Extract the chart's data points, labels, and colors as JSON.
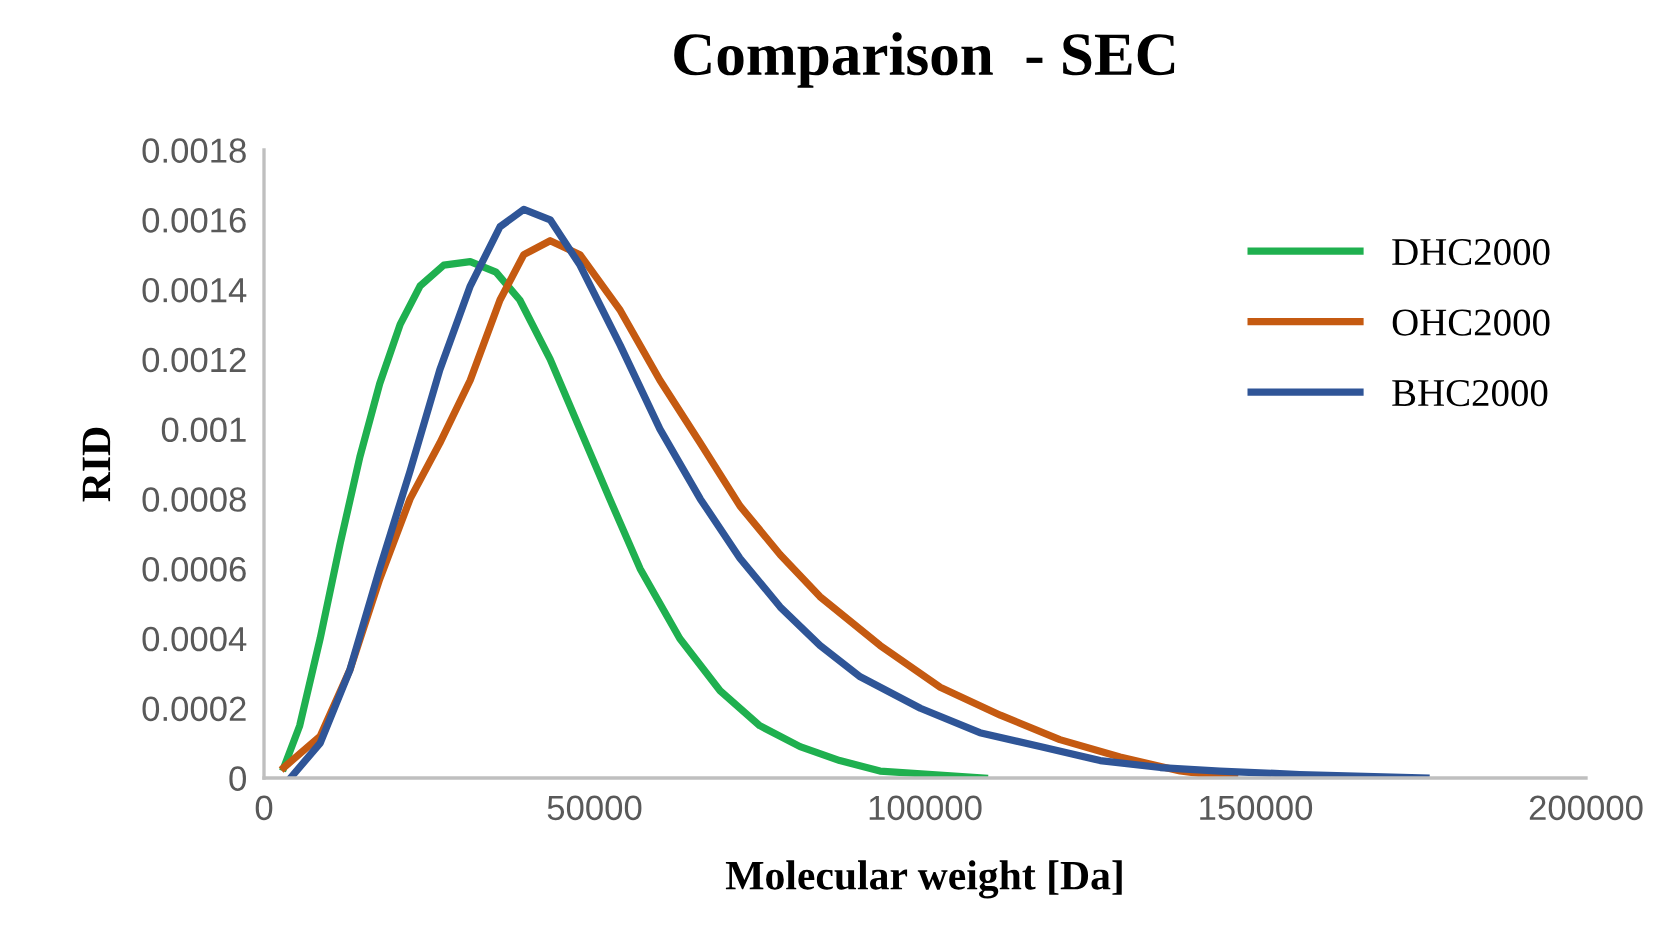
{
  "chart_data": {
    "type": "line",
    "title": "Comparison  - SEC",
    "xlabel": "Molecular weight [Da]",
    "ylabel": "RID",
    "xlim": [
      0,
      200000
    ],
    "xticks": [
      0,
      50000,
      100000,
      150000,
      200000
    ],
    "ylim": [
      0,
      0.0018
    ],
    "yticks": [
      0,
      0.0002,
      0.0004,
      0.0006,
      0.0008,
      0.001,
      0.0012,
      0.0014,
      0.0016,
      0.0018
    ],
    "grid": false,
    "legend": "right",
    "marker": "none",
    "line_style": "solid",
    "series": [
      {
        "name": "DHC2000",
        "color": "#1fb04f",
        "x": [
          3000,
          5400,
          8500,
          11500,
          14500,
          17500,
          20600,
          23600,
          27200,
          31200,
          35100,
          38700,
          43300,
          47800,
          52300,
          56900,
          62900,
          69000,
          75000,
          81100,
          87100,
          93200,
          109000
        ],
        "values": [
          3e-05,
          0.00015,
          0.0004,
          0.00067,
          0.00092,
          0.00113,
          0.0013,
          0.00141,
          0.00147,
          0.00148,
          0.00145,
          0.00137,
          0.0012,
          0.001,
          0.0008,
          0.0006,
          0.0004,
          0.00025,
          0.00015,
          9e-05,
          5e-05,
          2e-05,
          0
        ]
      },
      {
        "name": "OHC2000",
        "color": "#c55a11",
        "x": [
          3000,
          8500,
          13000,
          17500,
          22100,
          26600,
          31200,
          35700,
          39300,
          43300,
          47800,
          53900,
          59900,
          66000,
          72000,
          78100,
          84100,
          93200,
          102300,
          111400,
          120400,
          129500,
          138600,
          146800
        ],
        "values": [
          3e-05,
          0.00012,
          0.00031,
          0.00057,
          0.0008,
          0.00096,
          0.00114,
          0.00137,
          0.0015,
          0.00154,
          0.0015,
          0.00134,
          0.00114,
          0.00096,
          0.00078,
          0.00064,
          0.00052,
          0.00038,
          0.00026,
          0.00018,
          0.00011,
          6e-05,
          2e-05,
          0
        ]
      },
      {
        "name": "BHC2000",
        "color": "#2f5597",
        "x": [
          4000,
          8500,
          13000,
          17500,
          22100,
          26600,
          31200,
          35700,
          39300,
          43300,
          47800,
          53900,
          59900,
          66000,
          72000,
          78100,
          84100,
          90200,
          99300,
          108300,
          117400,
          126500,
          135600,
          144600,
          156700,
          175800
        ],
        "values": [
          0,
          0.0001,
          0.00031,
          0.0006,
          0.00088,
          0.00117,
          0.00141,
          0.00158,
          0.00163,
          0.0016,
          0.00147,
          0.00124,
          0.001,
          0.0008,
          0.00063,
          0.00049,
          0.00038,
          0.00029,
          0.0002,
          0.00013,
          9e-05,
          5e-05,
          3e-05,
          2e-05,
          1e-05,
          0
        ]
      }
    ]
  }
}
